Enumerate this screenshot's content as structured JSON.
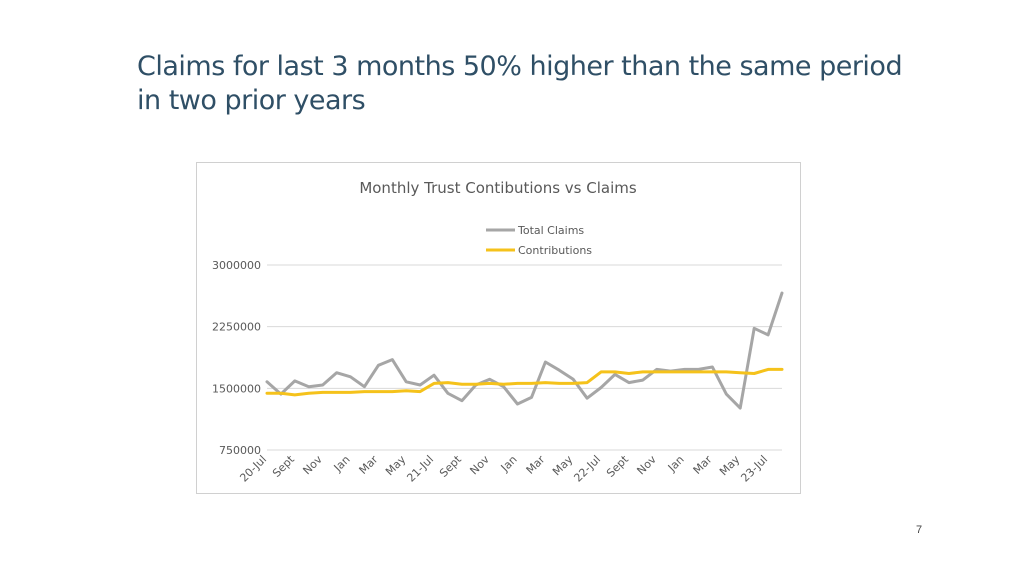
{
  "slide": {
    "title": "Claims for last 3 months 50% higher than the same period in two prior years",
    "page_number": "7"
  },
  "chart_data": {
    "type": "line",
    "title": "Monthly Trust Contibutions vs Claims",
    "xlabel": "",
    "ylabel": "",
    "ylim": [
      750000,
      3000000
    ],
    "yticks": [
      750000,
      1500000,
      2250000,
      3000000
    ],
    "ytick_labels": [
      "750000",
      "1500000",
      "2250000",
      "3000000"
    ],
    "grid": true,
    "legend_placement": "top-center",
    "x_tick_labels": [
      {
        "index": 0,
        "label": "20-Jul"
      },
      {
        "index": 2,
        "label": "Sept"
      },
      {
        "index": 4,
        "label": "Nov"
      },
      {
        "index": 6,
        "label": "Jan"
      },
      {
        "index": 8,
        "label": "Mar"
      },
      {
        "index": 10,
        "label": "May"
      },
      {
        "index": 12,
        "label": "21-Jul"
      },
      {
        "index": 14,
        "label": "Sept"
      },
      {
        "index": 16,
        "label": "Nov"
      },
      {
        "index": 18,
        "label": "Jan"
      },
      {
        "index": 20,
        "label": "Mar"
      },
      {
        "index": 22,
        "label": "May"
      },
      {
        "index": 24,
        "label": "22-Jul"
      },
      {
        "index": 26,
        "label": "Sept"
      },
      {
        "index": 28,
        "label": "Nov"
      },
      {
        "index": 30,
        "label": "Jan"
      },
      {
        "index": 32,
        "label": "Mar"
      },
      {
        "index": 34,
        "label": "May"
      },
      {
        "index": 36,
        "label": "23-Jul"
      }
    ],
    "series": [
      {
        "name": "Total Claims",
        "color": "#a6a6a6",
        "values": [
          1580000,
          1430000,
          1590000,
          1520000,
          1540000,
          1690000,
          1640000,
          1520000,
          1780000,
          1850000,
          1580000,
          1540000,
          1660000,
          1440000,
          1350000,
          1540000,
          1610000,
          1520000,
          1310000,
          1390000,
          1820000,
          1720000,
          1610000,
          1380000,
          1510000,
          1670000,
          1570000,
          1600000,
          1730000,
          1710000,
          1730000,
          1730000,
          1760000,
          1430000,
          1260000,
          2230000,
          2150000,
          2660000
        ]
      },
      {
        "name": "Contributions",
        "color": "#f5c21b",
        "values": [
          1440000,
          1440000,
          1420000,
          1440000,
          1450000,
          1450000,
          1450000,
          1460000,
          1460000,
          1460000,
          1470000,
          1460000,
          1560000,
          1570000,
          1550000,
          1550000,
          1560000,
          1550000,
          1560000,
          1560000,
          1570000,
          1560000,
          1560000,
          1570000,
          1700000,
          1700000,
          1680000,
          1700000,
          1700000,
          1700000,
          1700000,
          1700000,
          1700000,
          1700000,
          1690000,
          1680000,
          1730000,
          1730000
        ]
      }
    ]
  }
}
